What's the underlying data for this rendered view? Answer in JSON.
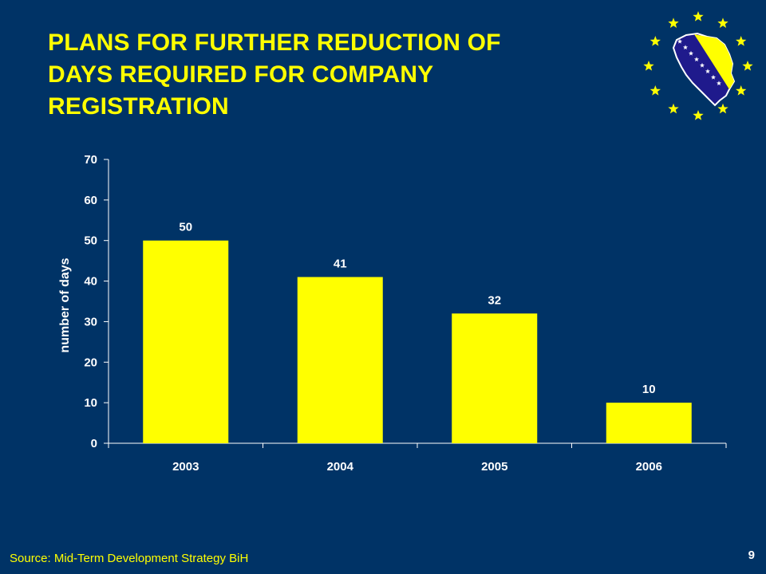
{
  "slide": {
    "title_lines": [
      "PLANS FOR FURTHER REDUCTION OF",
      "DAYS REQUIRED FOR COMPANY",
      "REGISTRATION"
    ],
    "source": "Source: Mid-Term Development Strategy BiH",
    "page_number": "9"
  },
  "colors": {
    "background": "#003366",
    "bar": "#FFFF00",
    "title": "#FFFF00",
    "text": "#FFFFFF",
    "logo_star": "#FFFF00",
    "logo_map": "#1F1A8C"
  },
  "logo": {
    "icon": "bih-map-stars-logo"
  },
  "chart_data": {
    "type": "bar",
    "title": "",
    "xlabel": "",
    "ylabel": "number of days",
    "categories": [
      "2003",
      "2004",
      "2005",
      "2006"
    ],
    "values": [
      50,
      41,
      32,
      10
    ],
    "data_labels": [
      "50",
      "41",
      "32",
      "10"
    ],
    "ylim": [
      0,
      70
    ],
    "yticks": [
      0,
      10,
      20,
      30,
      40,
      50,
      60,
      70
    ],
    "grid": false,
    "legend": "none"
  }
}
